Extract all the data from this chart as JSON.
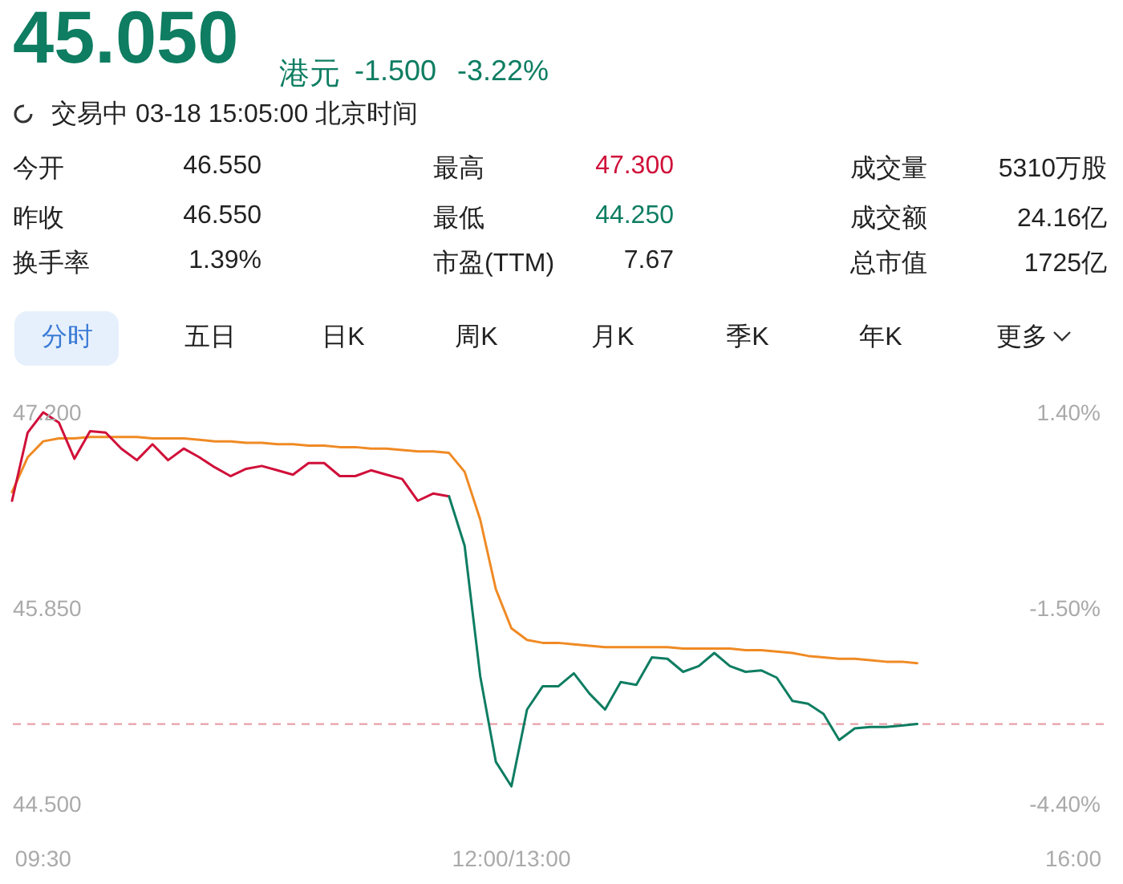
{
  "chart_data": [
    {
      "type": "other",
      "title": "45.050",
      "annotations": [
        "港元",
        "-1.500",
        "-3.22%",
        "交易中 03-18 15:05:00 北京时间",
        "今开",
        "46.550",
        "最高",
        "47.300",
        "成交量",
        "5310万股",
        "昨收",
        "46.550",
        "最低",
        "44.250",
        "成交额",
        "24.16亿",
        "换手率",
        "1.39%",
        "市盈(TTM)",
        "7.67",
        "总市值",
        "1725亿",
        "分时",
        "五日",
        "日K",
        "周K",
        "月K",
        "季K",
        "年K",
        "更多"
      ]
    },
    {
      "type": "line",
      "categories": [
        null,
        null,
        "09:30",
        null,
        null,
        null,
        null,
        null,
        null,
        null,
        null,
        null,
        null,
        null,
        null,
        null,
        null,
        null,
        null,
        null,
        null,
        null,
        null,
        null,
        null,
        null,
        null,
        null,
        null,
        null,
        null,
        null,
        "12:00/13:00",
        null,
        null,
        null,
        null,
        null,
        null,
        null,
        null,
        null,
        null,
        null,
        null,
        null,
        null,
        null,
        null,
        null,
        null,
        null,
        null,
        null,
        null,
        null,
        null,
        null,
        null,
        null,
        null,
        null,
        null,
        null,
        null,
        null,
        null,
        null,
        "16:00"
      ],
      "ylim": [
        44.5,
        47.2
      ],
      "yticks": [
        {
          "value": 47.2,
          "label": "47.200"
        },
        {
          "value": 45.85,
          "label": "45.850"
        },
        {
          "value": 44.5,
          "label": "44.500"
        }
      ],
      "y2lim": [
        -4.4,
        1.4
      ],
      "y2ticks": [
        {
          "value": 1.4,
          "label": "1.40%"
        },
        {
          "value": -1.5,
          "label": "-1.50%"
        },
        {
          "value": -4.4,
          "label": "-4.40%"
        }
      ],
      "grid": false,
      "marker": "none",
      "line_style": "solid",
      "ref_lines": [
        {
          "axis": "y",
          "value": 45.05,
          "color": "#e8a0a8",
          "line_style": "dashed"
        }
      ],
      "series": [
        {
          "color": "#f08a24",
          "values": [
            46.65,
            46.89,
            47.0,
            47.02,
            47.02,
            47.03,
            47.03,
            47.03,
            47.03,
            47.02,
            47.02,
            47.02,
            47.01,
            47.0,
            47.0,
            46.99,
            46.99,
            46.98,
            46.98,
            46.97,
            46.97,
            46.96,
            46.96,
            46.95,
            46.95,
            46.94,
            46.93,
            46.93,
            46.92,
            46.79,
            46.46,
            45.98,
            45.71,
            45.63,
            45.61,
            45.61,
            45.6,
            45.59,
            45.58,
            45.58,
            45.58,
            45.58,
            45.58,
            45.57,
            45.57,
            45.57,
            45.57,
            45.56,
            45.56,
            45.55,
            45.54,
            45.52,
            45.51,
            45.5,
            45.5,
            45.49,
            45.48,
            45.48,
            45.47,
            null,
            null,
            null,
            null,
            null,
            null,
            null,
            null,
            null,
            null
          ]
        },
        {
          "color": "#d0103a",
          "values": [
            46.59,
            47.06,
            47.2,
            47.13,
            46.88,
            47.07,
            47.06,
            46.95,
            46.87,
            46.98,
            46.87,
            46.95,
            46.89,
            46.82,
            46.76,
            46.81,
            46.83,
            46.8,
            46.77,
            46.85,
            46.85,
            46.76,
            46.76,
            46.8,
            46.77,
            46.74,
            46.59,
            46.64,
            46.62,
            null,
            null,
            null,
            null,
            null,
            null,
            null,
            null,
            null,
            null,
            null,
            null,
            null,
            null,
            null,
            null,
            null,
            null,
            null,
            null,
            null,
            null,
            null,
            null,
            null,
            null,
            null,
            null,
            null,
            null,
            null,
            null,
            null,
            null,
            null,
            null,
            null,
            null,
            null,
            null
          ]
        },
        {
          "color": "#0e7d62",
          "values": [
            null,
            null,
            null,
            null,
            null,
            null,
            null,
            null,
            null,
            null,
            null,
            null,
            null,
            null,
            null,
            null,
            null,
            null,
            null,
            null,
            null,
            null,
            null,
            null,
            null,
            null,
            null,
            null,
            46.62,
            46.28,
            45.38,
            44.79,
            44.62,
            45.15,
            45.31,
            45.31,
            45.4,
            45.26,
            45.15,
            45.34,
            45.32,
            45.51,
            45.5,
            45.41,
            45.45,
            45.54,
            45.45,
            45.41,
            45.42,
            45.37,
            45.21,
            45.19,
            45.12,
            44.94,
            45.02,
            45.03,
            45.03,
            45.04,
            45.05,
            null,
            null,
            null,
            null,
            null,
            null,
            null,
            null,
            null,
            null
          ]
        }
      ]
    }
  ]
}
